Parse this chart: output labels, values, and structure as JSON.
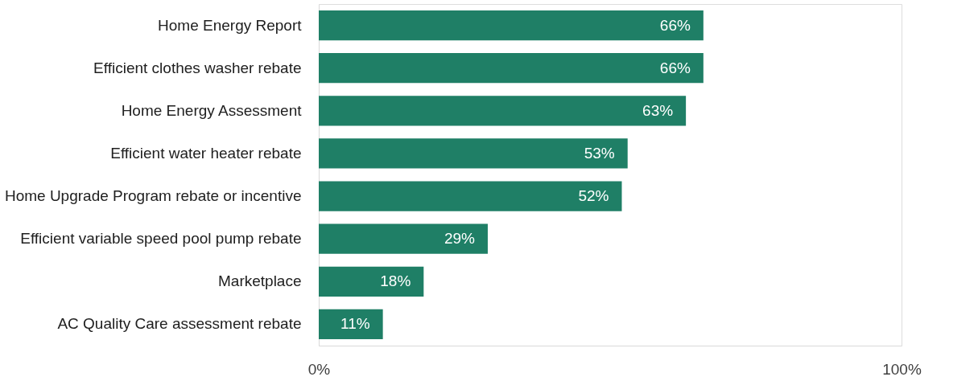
{
  "chart_data": {
    "type": "bar",
    "orientation": "horizontal",
    "categories": [
      "Home Energy Report",
      "Efficient clothes washer rebate",
      "Home Energy Assessment",
      "Efficient water heater rebate",
      "Home Upgrade Program rebate or incentive",
      "Efficient variable speed pool pump rebate",
      "Marketplace",
      "AC Quality Care assessment rebate"
    ],
    "values": [
      66,
      66,
      63,
      53,
      52,
      29,
      18,
      11
    ],
    "value_labels": [
      "66%",
      "66%",
      "63%",
      "53%",
      "52%",
      "29%",
      "18%",
      "11%"
    ],
    "color": "#1f7f66",
    "xlim": [
      0,
      100
    ],
    "xticks": [
      {
        "value": 0,
        "label": "0%"
      },
      {
        "value": 100,
        "label": "100%"
      }
    ]
  }
}
